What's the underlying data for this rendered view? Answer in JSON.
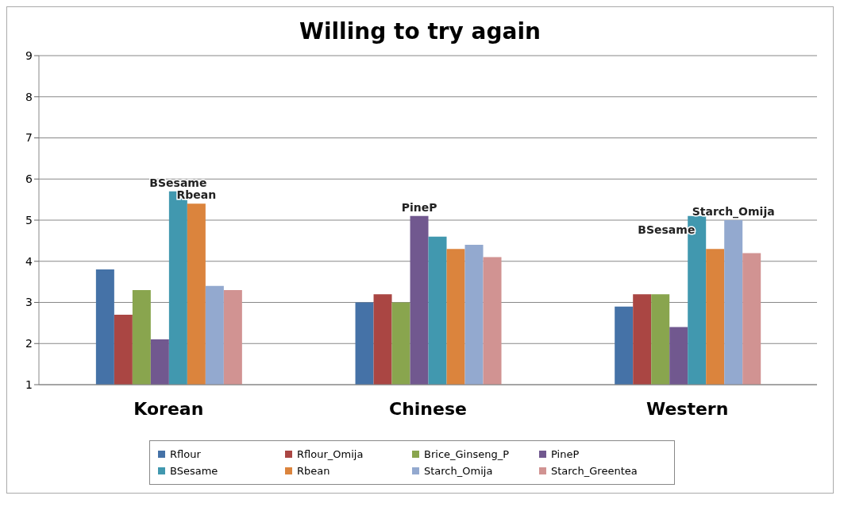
{
  "chart_data": {
    "type": "bar",
    "title": "Willing to try again",
    "categories": [
      "Korean",
      "Chinese",
      "Western"
    ],
    "series": [
      {
        "name": "Rflour",
        "color": "#4572a7",
        "values": [
          3.8,
          3.0,
          2.9
        ]
      },
      {
        "name": "Rflour_Omija",
        "color": "#aa4643",
        "values": [
          2.7,
          3.2,
          3.2
        ]
      },
      {
        "name": "Brice_Ginseng_P",
        "color": "#89a54e",
        "values": [
          3.3,
          3.0,
          3.2
        ]
      },
      {
        "name": "PineP",
        "color": "#71588f",
        "values": [
          2.1,
          5.1,
          2.4
        ]
      },
      {
        "name": "BSesame",
        "color": "#4198af",
        "values": [
          5.7,
          4.6,
          5.1
        ]
      },
      {
        "name": "Rbean",
        "color": "#db843d",
        "values": [
          5.4,
          4.3,
          4.3
        ]
      },
      {
        "name": "Starch_Omija",
        "color": "#93a9cf",
        "values": [
          3.4,
          4.4,
          5.0
        ]
      },
      {
        "name": "Starch_Greentea",
        "color": "#d19392",
        "values": [
          3.3,
          4.1,
          4.2
        ]
      }
    ],
    "annotations": [
      {
        "text": "BSesame",
        "x": "Korean",
        "y": 5.7
      },
      {
        "text": "Rbean",
        "x": "Korean",
        "y": 5.4
      },
      {
        "text": "PineP",
        "x": "Chinese",
        "y": 5.1
      },
      {
        "text": "BSesame",
        "x": "Western",
        "y": 5.1
      },
      {
        "text": "Starch_Omija",
        "x": "Western",
        "y": 5.0
      }
    ],
    "ylim": [
      1,
      9
    ],
    "yticks": [
      1,
      2,
      3,
      4,
      5,
      6,
      7,
      8,
      9
    ],
    "grid": "y",
    "legend": "bottom"
  }
}
